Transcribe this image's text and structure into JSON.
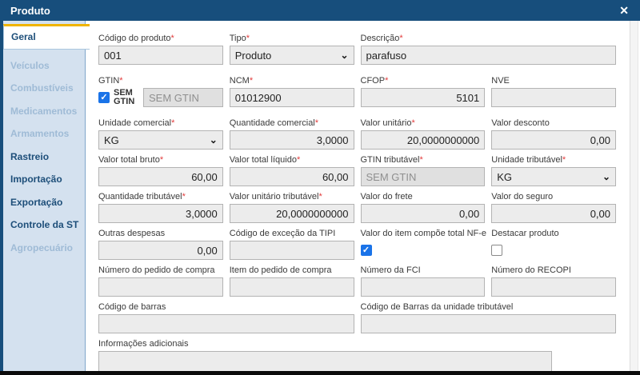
{
  "ui": {
    "required_mark": "*"
  },
  "icons": {
    "check": "✓",
    "chevron": "⌄",
    "close": "✕"
  },
  "colors": {
    "titlebar": "#174e7c",
    "sidebar_bg": "#d4e1ef",
    "active_tab_accent": "#f0b400",
    "checkbox_blue": "#1a73e8",
    "required_red": "#e23b3b",
    "input_bg": "#ececec",
    "disabled_input_bg": "#e0e0e0",
    "bottom_edge": "#0b0b0b"
  },
  "window": {
    "title": "Produto"
  },
  "sidebar": {
    "items": [
      {
        "label": "Geral",
        "state": "active"
      },
      {
        "label": "Veículos",
        "state": "disabled"
      },
      {
        "label": "Combustíveis",
        "state": "disabled"
      },
      {
        "label": "Medicamentos",
        "state": "disabled"
      },
      {
        "label": "Armamentos",
        "state": "disabled"
      },
      {
        "label": "Rastreio",
        "state": "enabled"
      },
      {
        "label": "Importação",
        "state": "enabled"
      },
      {
        "label": "Exportação",
        "state": "enabled"
      },
      {
        "label": "Controle da ST",
        "state": "enabled"
      },
      {
        "label": "Agropecuário",
        "state": "disabled"
      }
    ]
  },
  "form": {
    "codigo_produto": {
      "label": "Código do produto",
      "required": true,
      "value": "001"
    },
    "tipo": {
      "label": "Tipo",
      "required": true,
      "value": "Produto",
      "control": "select"
    },
    "descricao": {
      "label": "Descrição",
      "required": true,
      "value": "parafuso"
    },
    "gtin": {
      "label": "GTIN",
      "required": true,
      "checkbox_label": "SEM GTIN",
      "checkbox_checked": true,
      "value": "SEM GTIN",
      "disabled": true
    },
    "ncm": {
      "label": "NCM",
      "required": true,
      "value": "01012900"
    },
    "cfop": {
      "label": "CFOP",
      "required": true,
      "value": "5101"
    },
    "nve": {
      "label": "NVE",
      "required": false,
      "value": ""
    },
    "unidade_comercial": {
      "label": "Unidade comercial",
      "required": true,
      "value": "KG",
      "control": "select"
    },
    "quantidade_comercial": {
      "label": "Quantidade comercial",
      "required": true,
      "value": "3,0000"
    },
    "valor_unitario": {
      "label": "Valor unitário",
      "required": true,
      "value": "20,0000000000"
    },
    "valor_desconto": {
      "label": "Valor desconto",
      "required": false,
      "value": "0,00"
    },
    "valor_total_bruto": {
      "label": "Valor total bruto",
      "required": true,
      "value": "60,00"
    },
    "valor_total_liquido": {
      "label": "Valor total líquido",
      "required": true,
      "value": "60,00"
    },
    "gtin_tributavel": {
      "label": "GTIN tributável",
      "required": true,
      "value": "SEM GTIN",
      "disabled": true
    },
    "unidade_tributavel": {
      "label": "Unidade tributável",
      "required": true,
      "value": "KG",
      "control": "select"
    },
    "quantidade_tributavel": {
      "label": "Quantidade tributável",
      "required": true,
      "value": "3,0000"
    },
    "valor_unitario_tributavel": {
      "label": "Valor unitário tributável",
      "required": true,
      "value": "20,0000000000"
    },
    "valor_frete": {
      "label": "Valor do frete",
      "required": false,
      "value": "0,00"
    },
    "valor_seguro": {
      "label": "Valor do seguro",
      "required": false,
      "value": "0,00"
    },
    "outras_despesas": {
      "label": "Outras despesas",
      "required": false,
      "value": "0,00"
    },
    "codigo_excecao_tipi": {
      "label": "Código de exceção da TIPI",
      "required": false,
      "value": ""
    },
    "compoe_total_nfe": {
      "label": "Valor do item compõe total NF-e",
      "checked": true
    },
    "destacar_produto": {
      "label": "Destacar produto",
      "checked": false
    },
    "numero_pedido_compra": {
      "label": "Número do pedido de compra",
      "required": false,
      "value": ""
    },
    "item_pedido_compra": {
      "label": "Item do pedido de compra",
      "required": false,
      "value": ""
    },
    "numero_fci": {
      "label": "Número da FCI",
      "required": false,
      "value": ""
    },
    "numero_recopi": {
      "label": "Número do RECOPI",
      "required": false,
      "value": ""
    },
    "codigo_barras": {
      "label": "Código de barras",
      "required": false,
      "value": ""
    },
    "codigo_barras_unidade_tributavel": {
      "label": "Código de Barras da unidade tributável",
      "required": false,
      "value": ""
    },
    "informacoes_adicionais": {
      "label": "Informações adicionais",
      "required": false,
      "value": ""
    }
  }
}
